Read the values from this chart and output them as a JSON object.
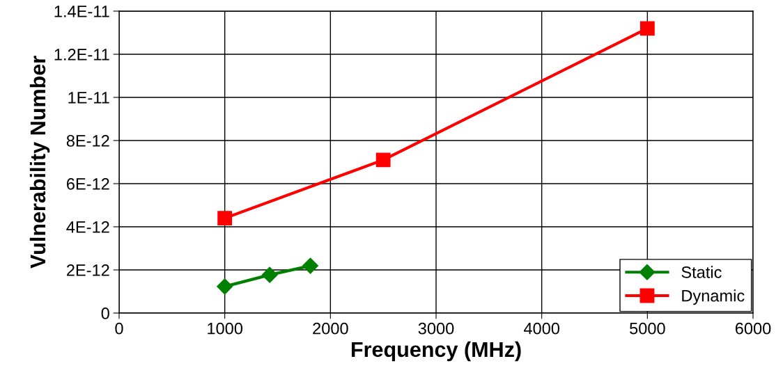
{
  "chart_data": {
    "type": "line",
    "xlabel": "Frequency (MHz)",
    "ylabel": "Vulnerability Number",
    "series": [
      {
        "name": "Static",
        "color": "#008000",
        "marker": "diamond",
        "x": [
          1000,
          1425,
          1810
        ],
        "values": [
          1.23e-12,
          1.77e-12,
          2.19e-12
        ]
      },
      {
        "name": "Dynamic",
        "color": "#ff0000",
        "marker": "square",
        "x": [
          1000,
          2500,
          5000
        ],
        "values": [
          4.4e-12,
          7.1e-12,
          1.32e-11
        ]
      }
    ],
    "xlim": [
      0,
      6000
    ],
    "xticks": [
      0,
      1000,
      2000,
      3000,
      4000,
      5000,
      6000
    ],
    "ylim": [
      0,
      1.4e-11
    ],
    "yticks": [
      0,
      {
        "value": 2e-12,
        "label": "2E-12"
      },
      {
        "value": 4e-12,
        "label": "4E-12"
      },
      {
        "value": 6e-12,
        "label": "6E-12"
      },
      {
        "value": 8e-12,
        "label": "8E-12"
      },
      {
        "value": 1e-11,
        "label": "1E-11"
      },
      {
        "value": 1.2e-11,
        "label": "1.2E-11"
      },
      {
        "value": 1.4e-11,
        "label": "1.4E-11"
      }
    ],
    "grid": true,
    "legend": "bottom right",
    "line_style": "solid"
  }
}
